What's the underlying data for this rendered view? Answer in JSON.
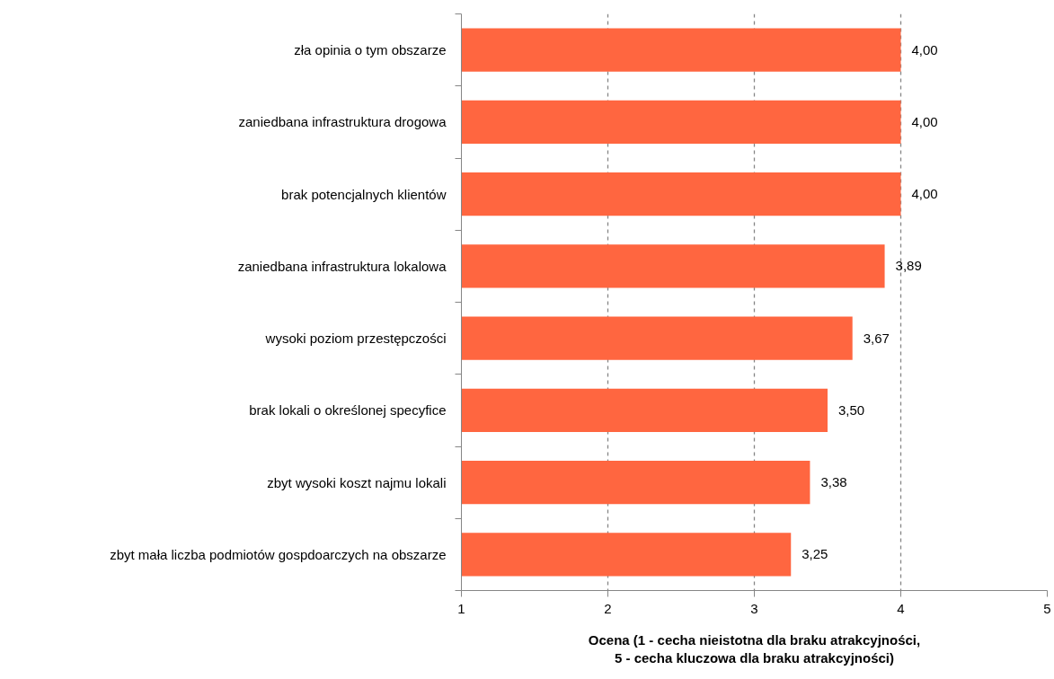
{
  "chart_data": {
    "type": "bar",
    "orientation": "horizontal",
    "categories": [
      "zła opinia o tym obszarze",
      "zaniedbana infrastruktura drogowa",
      "brak potencjalnych klientów",
      "zaniedbana infrastruktura lokalowa",
      "wysoki poziom przestępczości",
      "brak lokali o określonej specyfice",
      "zbyt wysoki koszt najmu lokali",
      "zbyt mała liczba podmiotów gospdoarczych na obszarze"
    ],
    "values": [
      4.0,
      4.0,
      4.0,
      3.89,
      3.67,
      3.5,
      3.38,
      3.25
    ],
    "value_labels": [
      "4,00",
      "4,00",
      "4,00",
      "3,89",
      "3,67",
      "3,50",
      "3,38",
      "3,25"
    ],
    "color": "#ff6640",
    "xlabel": "Ocena (1 - cecha nieistotna dla braku atrakcyjności,\n5 - cecha kluczowa dla braku atrakcyjności)",
    "xlim": [
      1,
      5
    ],
    "xticks": [
      1,
      2,
      3,
      4,
      5
    ],
    "grid": "x",
    "line_style": "dashed"
  }
}
